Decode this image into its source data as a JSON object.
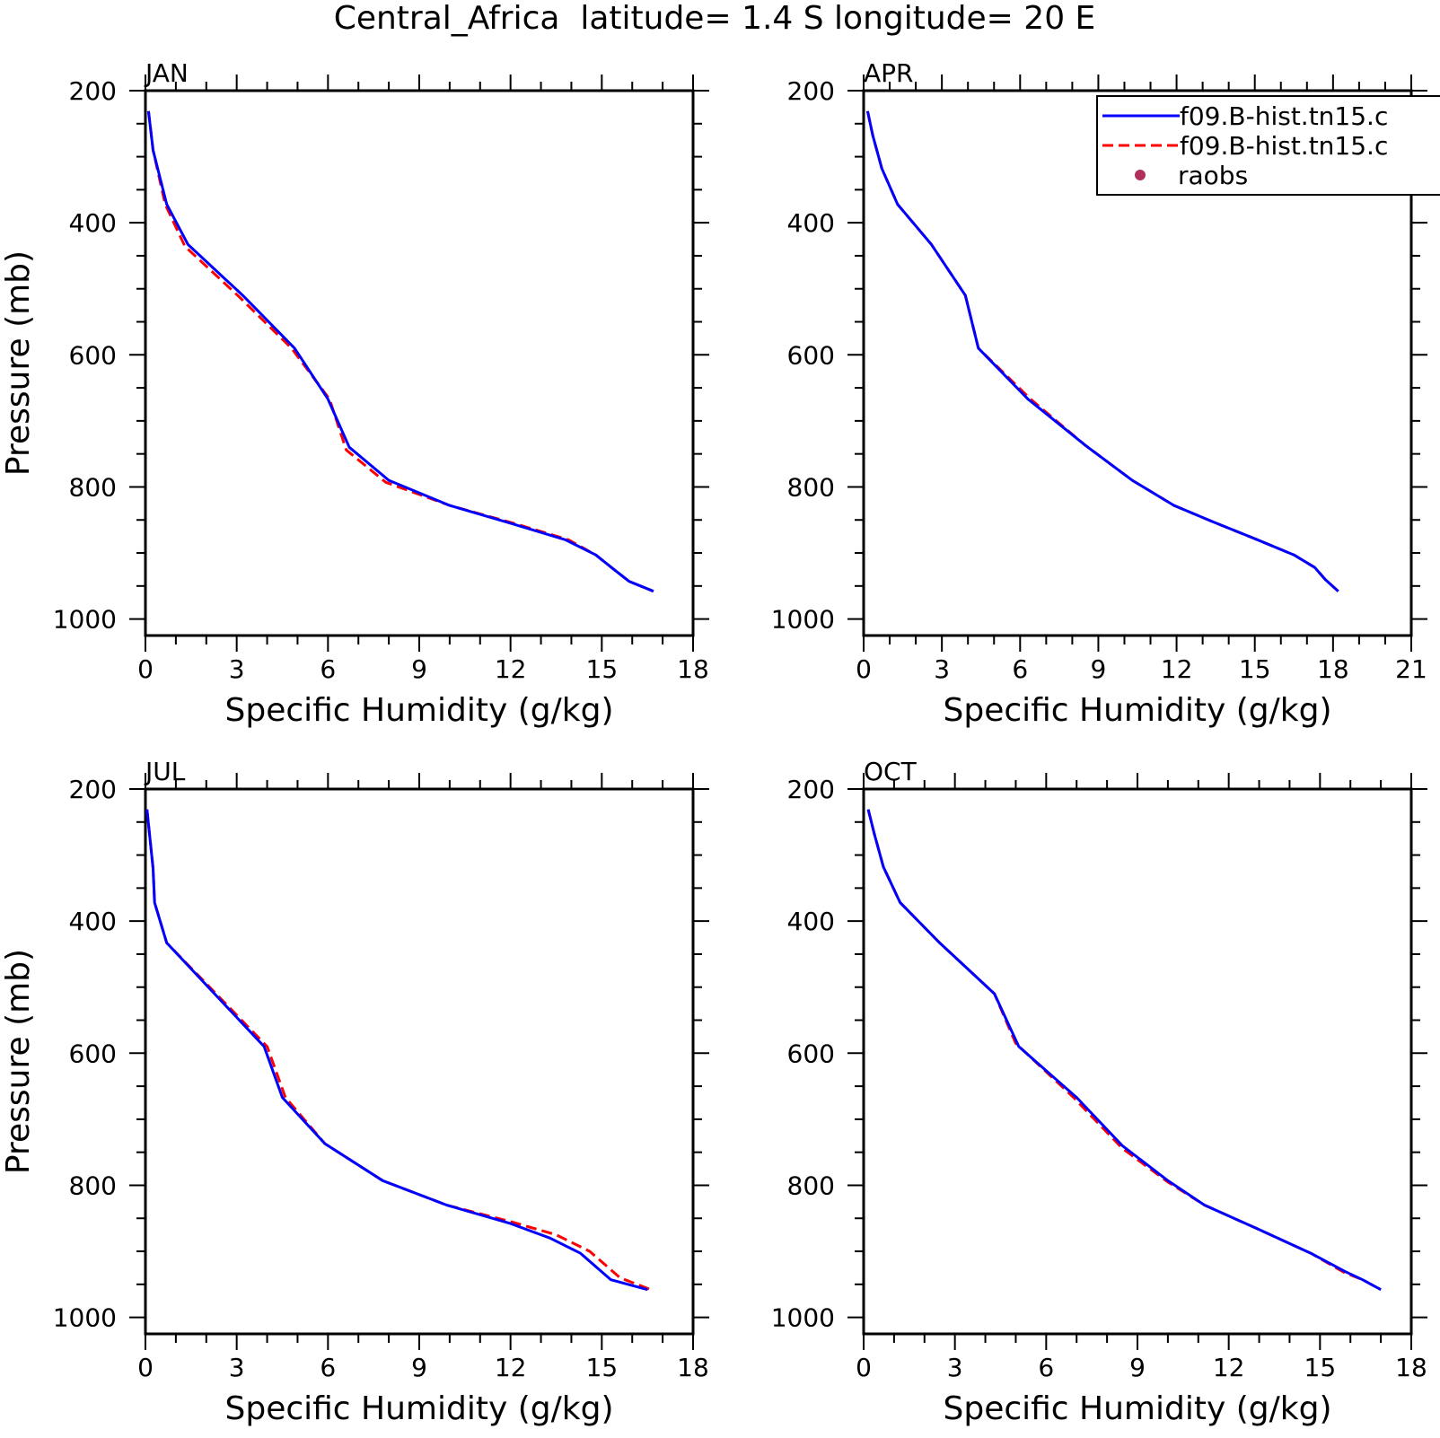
{
  "title": "Central_Africa  latitude= 1.4 S longitude= 20 E",
  "legend": {
    "entries": [
      {
        "label": "f09.B-hist.tn15.c",
        "style": "solid",
        "color": "#0000ff"
      },
      {
        "label": "f09.B-hist.tn15.c",
        "style": "dashed",
        "color": "#ff0000"
      },
      {
        "label": "raobs",
        "style": "dot",
        "color": "#b0305c"
      }
    ],
    "placement": "top-right"
  },
  "chart_data": [
    {
      "type": "line",
      "panel_title": "JAN",
      "xlabel": "Specific Humidity (g/kg)",
      "ylabel": "Pressure (mb)",
      "xlim": [
        0,
        18
      ],
      "ylim": [
        200,
        1025
      ],
      "y_inverted": true,
      "xticks": [
        0,
        3,
        6,
        9,
        12,
        15,
        18
      ],
      "yticks": [
        200,
        400,
        600,
        800,
        1000
      ],
      "series": [
        {
          "name": "f09.B-hist.tn15.c",
          "color": "#0000ff",
          "style": "solid",
          "x": [
            0.1,
            0.25,
            0.7,
            1.4,
            3.2,
            4.9,
            6.0,
            6.7,
            8.0,
            10.0,
            12.0,
            13.8,
            14.8,
            15.4,
            15.9,
            16.7
          ],
          "y": [
            231,
            290,
            372,
            433,
            510,
            590,
            667,
            740,
            790,
            828,
            855,
            880,
            903,
            925,
            943,
            958
          ]
        },
        {
          "name": "f09.B-hist.tn15.c",
          "color": "#ff0000",
          "style": "dashed",
          "x": [
            0.1,
            0.25,
            0.65,
            1.3,
            3.1,
            4.8,
            6.05,
            6.6,
            7.9,
            10.0,
            12.1,
            13.9,
            14.8,
            15.4,
            15.9,
            16.7
          ],
          "y": [
            231,
            290,
            372,
            436,
            513,
            590,
            667,
            744,
            793,
            828,
            855,
            880,
            903,
            925,
            943,
            958
          ]
        }
      ]
    },
    {
      "type": "line",
      "panel_title": "APR",
      "xlabel": "Specific Humidity (g/kg)",
      "ylabel": "",
      "xlim": [
        0,
        21
      ],
      "ylim": [
        200,
        1025
      ],
      "y_inverted": true,
      "xticks": [
        0,
        3,
        6,
        9,
        12,
        15,
        18,
        21
      ],
      "yticks": [
        200,
        400,
        600,
        800,
        1000
      ],
      "series": [
        {
          "name": "f09.B-hist.tn15.c",
          "color": "#0000ff",
          "style": "solid",
          "x": [
            0.15,
            0.35,
            0.7,
            1.3,
            2.6,
            3.9,
            4.4,
            6.3,
            8.5,
            10.3,
            11.9,
            13.4,
            15.1,
            16.5,
            17.3,
            17.7,
            18.2
          ],
          "y": [
            231,
            268,
            318,
            372,
            433,
            510,
            590,
            667,
            737,
            790,
            828,
            853,
            880,
            903,
            922,
            940,
            958
          ]
        },
        {
          "name": "f09.B-hist.tn15.c",
          "color": "#ff0000",
          "style": "dashed",
          "x": [
            0.15,
            0.35,
            0.7,
            1.3,
            2.6,
            3.9,
            4.4,
            6.4,
            8.5,
            10.3,
            11.9,
            13.4,
            15.1,
            16.5,
            17.3,
            17.7,
            18.2
          ],
          "y": [
            231,
            268,
            318,
            372,
            433,
            510,
            590,
            667,
            737,
            790,
            828,
            853,
            880,
            903,
            922,
            940,
            958
          ]
        }
      ]
    },
    {
      "type": "line",
      "panel_title": "JUL",
      "xlabel": "Specific Humidity (g/kg)",
      "ylabel": "Pressure (mb)",
      "xlim": [
        0,
        18
      ],
      "ylim": [
        200,
        1025
      ],
      "y_inverted": true,
      "xticks": [
        0,
        3,
        6,
        9,
        12,
        15,
        18
      ],
      "yticks": [
        200,
        400,
        600,
        800,
        1000
      ],
      "series": [
        {
          "name": "f09.B-hist.tn15.c",
          "color": "#0000ff",
          "style": "solid",
          "x": [
            0.05,
            0.25,
            0.3,
            0.7,
            3.9,
            4.5,
            5.9,
            7.8,
            9.9,
            12.0,
            13.3,
            14.3,
            15.3,
            16.5
          ],
          "y": [
            231,
            320,
            372,
            433,
            590,
            667,
            737,
            793,
            830,
            858,
            880,
            903,
            943,
            958
          ]
        },
        {
          "name": "f09.B-hist.tn15.c",
          "color": "#ff0000",
          "style": "dashed",
          "x": [
            0.05,
            0.25,
            0.3,
            0.7,
            4.0,
            4.6,
            5.9,
            7.8,
            9.9,
            12.0,
            13.5,
            14.6,
            15.6,
            16.6
          ],
          "y": [
            231,
            320,
            372,
            433,
            590,
            667,
            737,
            793,
            830,
            855,
            875,
            900,
            940,
            958
          ]
        }
      ]
    },
    {
      "type": "line",
      "panel_title": "OCT",
      "xlabel": "Specific Humidity (g/kg)",
      "ylabel": "",
      "xlim": [
        0,
        18
      ],
      "ylim": [
        200,
        1025
      ],
      "y_inverted": true,
      "xticks": [
        0,
        3,
        6,
        9,
        12,
        15,
        18
      ],
      "yticks": [
        200,
        400,
        600,
        800,
        1000
      ],
      "series": [
        {
          "name": "f09.B-hist.tn15.c",
          "color": "#0000ff",
          "style": "solid",
          "x": [
            0.15,
            0.35,
            0.65,
            1.2,
            2.5,
            4.3,
            5.1,
            7.0,
            8.5,
            10.0,
            11.2,
            12.9,
            14.7,
            15.8,
            16.4,
            17.0
          ],
          "y": [
            231,
            268,
            318,
            372,
            433,
            510,
            590,
            667,
            740,
            793,
            830,
            865,
            903,
            930,
            943,
            958
          ]
        },
        {
          "name": "f09.B-hist.tn15.c",
          "color": "#ff0000",
          "style": "dashed",
          "x": [
            0.15,
            0.35,
            0.65,
            1.2,
            2.5,
            4.3,
            5.0,
            6.9,
            8.5,
            10.0,
            11.2,
            12.9,
            14.7,
            15.8,
            16.4,
            17.0
          ],
          "y": [
            231,
            268,
            318,
            372,
            433,
            510,
            585,
            667,
            744,
            795,
            830,
            865,
            903,
            932,
            943,
            958
          ]
        }
      ]
    }
  ]
}
